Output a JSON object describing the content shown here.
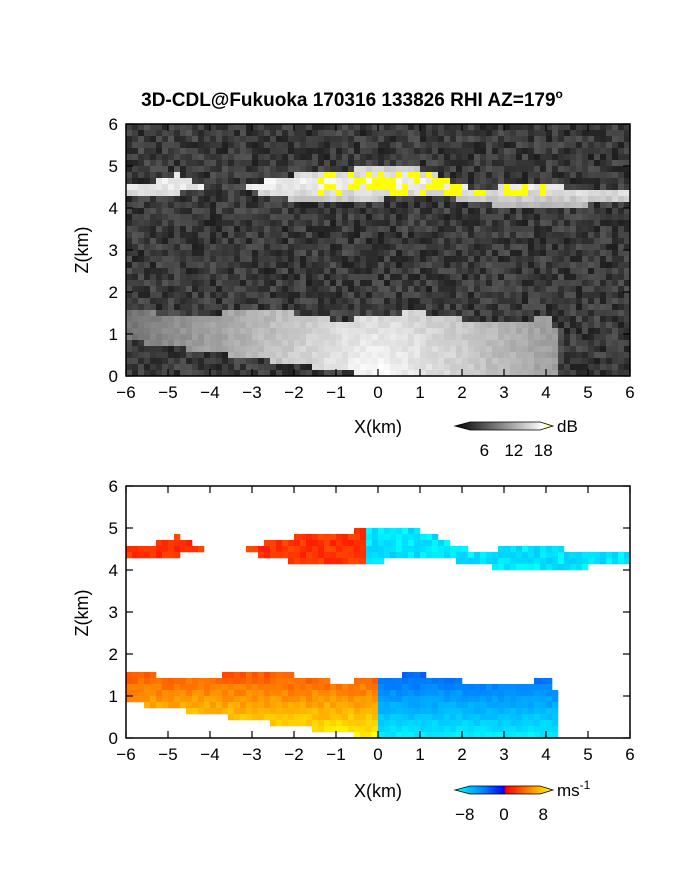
{
  "title": "3D-CDL@Fukuoka 170316 133826 RHI AZ=179",
  "title_superscript": "o",
  "chart_data": [
    {
      "type": "heatmap",
      "panel": "top",
      "quantity": "SNR",
      "xlabel": "X(km)",
      "ylabel": "Z(km)",
      "xlim": [
        -6,
        6
      ],
      "ylim": [
        0,
        6
      ],
      "xticks": [
        -6,
        -5,
        -4,
        -3,
        -2,
        -1,
        0,
        1,
        2,
        3,
        4,
        5,
        6
      ],
      "yticks": [
        0,
        1,
        2,
        3,
        4,
        5,
        6
      ],
      "grid": false,
      "colorbar": {
        "unit": "dB",
        "ticks": [
          6,
          12,
          18
        ],
        "range": [
          0,
          20
        ],
        "colors": [
          "#000000",
          "#ffffff",
          "#ffff00"
        ]
      },
      "features": [
        {
          "name": "upper cloud layer",
          "x_range": [
            -6,
            6
          ],
          "z_range": [
            4.2,
            5.5
          ],
          "level_db": 10
        },
        {
          "name": "boundary layer",
          "x_range": [
            -6,
            4.5
          ],
          "z_range": [
            0,
            1.6
          ],
          "level_db": 12
        },
        {
          "name": "saturated patches",
          "level_db": 19,
          "x_range": [
            -2,
            4
          ],
          "z_range": [
            4.3,
            5.1
          ]
        }
      ]
    },
    {
      "type": "heatmap",
      "panel": "bottom",
      "quantity": "Doppler velocity",
      "xlabel": "X(km)",
      "ylabel": "Z(km)",
      "xlim": [
        -6,
        6
      ],
      "ylim": [
        0,
        6
      ],
      "xticks": [
        -6,
        -5,
        -4,
        -3,
        -2,
        -1,
        0,
        1,
        2,
        3,
        4,
        5,
        6
      ],
      "yticks": [
        0,
        1,
        2,
        3,
        4,
        5,
        6
      ],
      "grid": false,
      "colorbar": {
        "unit": "ms",
        "unit_exponent": "-1",
        "ticks": [
          -8,
          0,
          8
        ],
        "range": [
          -10,
          10
        ],
        "colors": [
          "#0000ff",
          "#00ffff",
          "#ff0000",
          "#ffff00"
        ]
      },
      "features": [
        {
          "name": "upper layer receding",
          "x_range": [
            -6,
            -0.5
          ],
          "z_range": [
            4.2,
            5.3
          ],
          "velocity": 2
        },
        {
          "name": "upper layer approaching",
          "x_range": [
            -0.5,
            6
          ],
          "z_range": [
            4.2,
            5.5
          ],
          "velocity": -9
        },
        {
          "name": "boundary layer west",
          "x_range": [
            -6,
            0
          ],
          "z_range": [
            0,
            1.7
          ],
          "velocity": 5
        },
        {
          "name": "boundary layer east",
          "x_range": [
            0,
            4
          ],
          "z_range": [
            0,
            1.7
          ],
          "velocity": -6
        }
      ]
    }
  ]
}
